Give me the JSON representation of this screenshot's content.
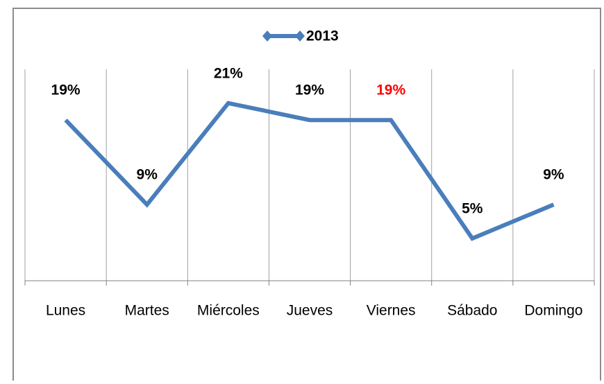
{
  "chart_data": {
    "type": "line",
    "categories": [
      "Lunes",
      "Martes",
      "Miércoles",
      "Jueves",
      "Viernes",
      "Sábado",
      "Domingo"
    ],
    "series": [
      {
        "name": "2013",
        "color": "#4a7ebb",
        "values": [
          19,
          9,
          21,
          19,
          19,
          5,
          9
        ],
        "value_labels": [
          "19%",
          "9%",
          "21%",
          "19%",
          "19%",
          "5%",
          "9%"
        ]
      }
    ],
    "value_label_colors": [
      "#000000",
      "#000000",
      "#000000",
      "#000000",
      "#ff0000",
      "#000000",
      "#000000"
    ],
    "ylim": [
      0,
      25
    ],
    "grid": true,
    "legend": "top"
  }
}
